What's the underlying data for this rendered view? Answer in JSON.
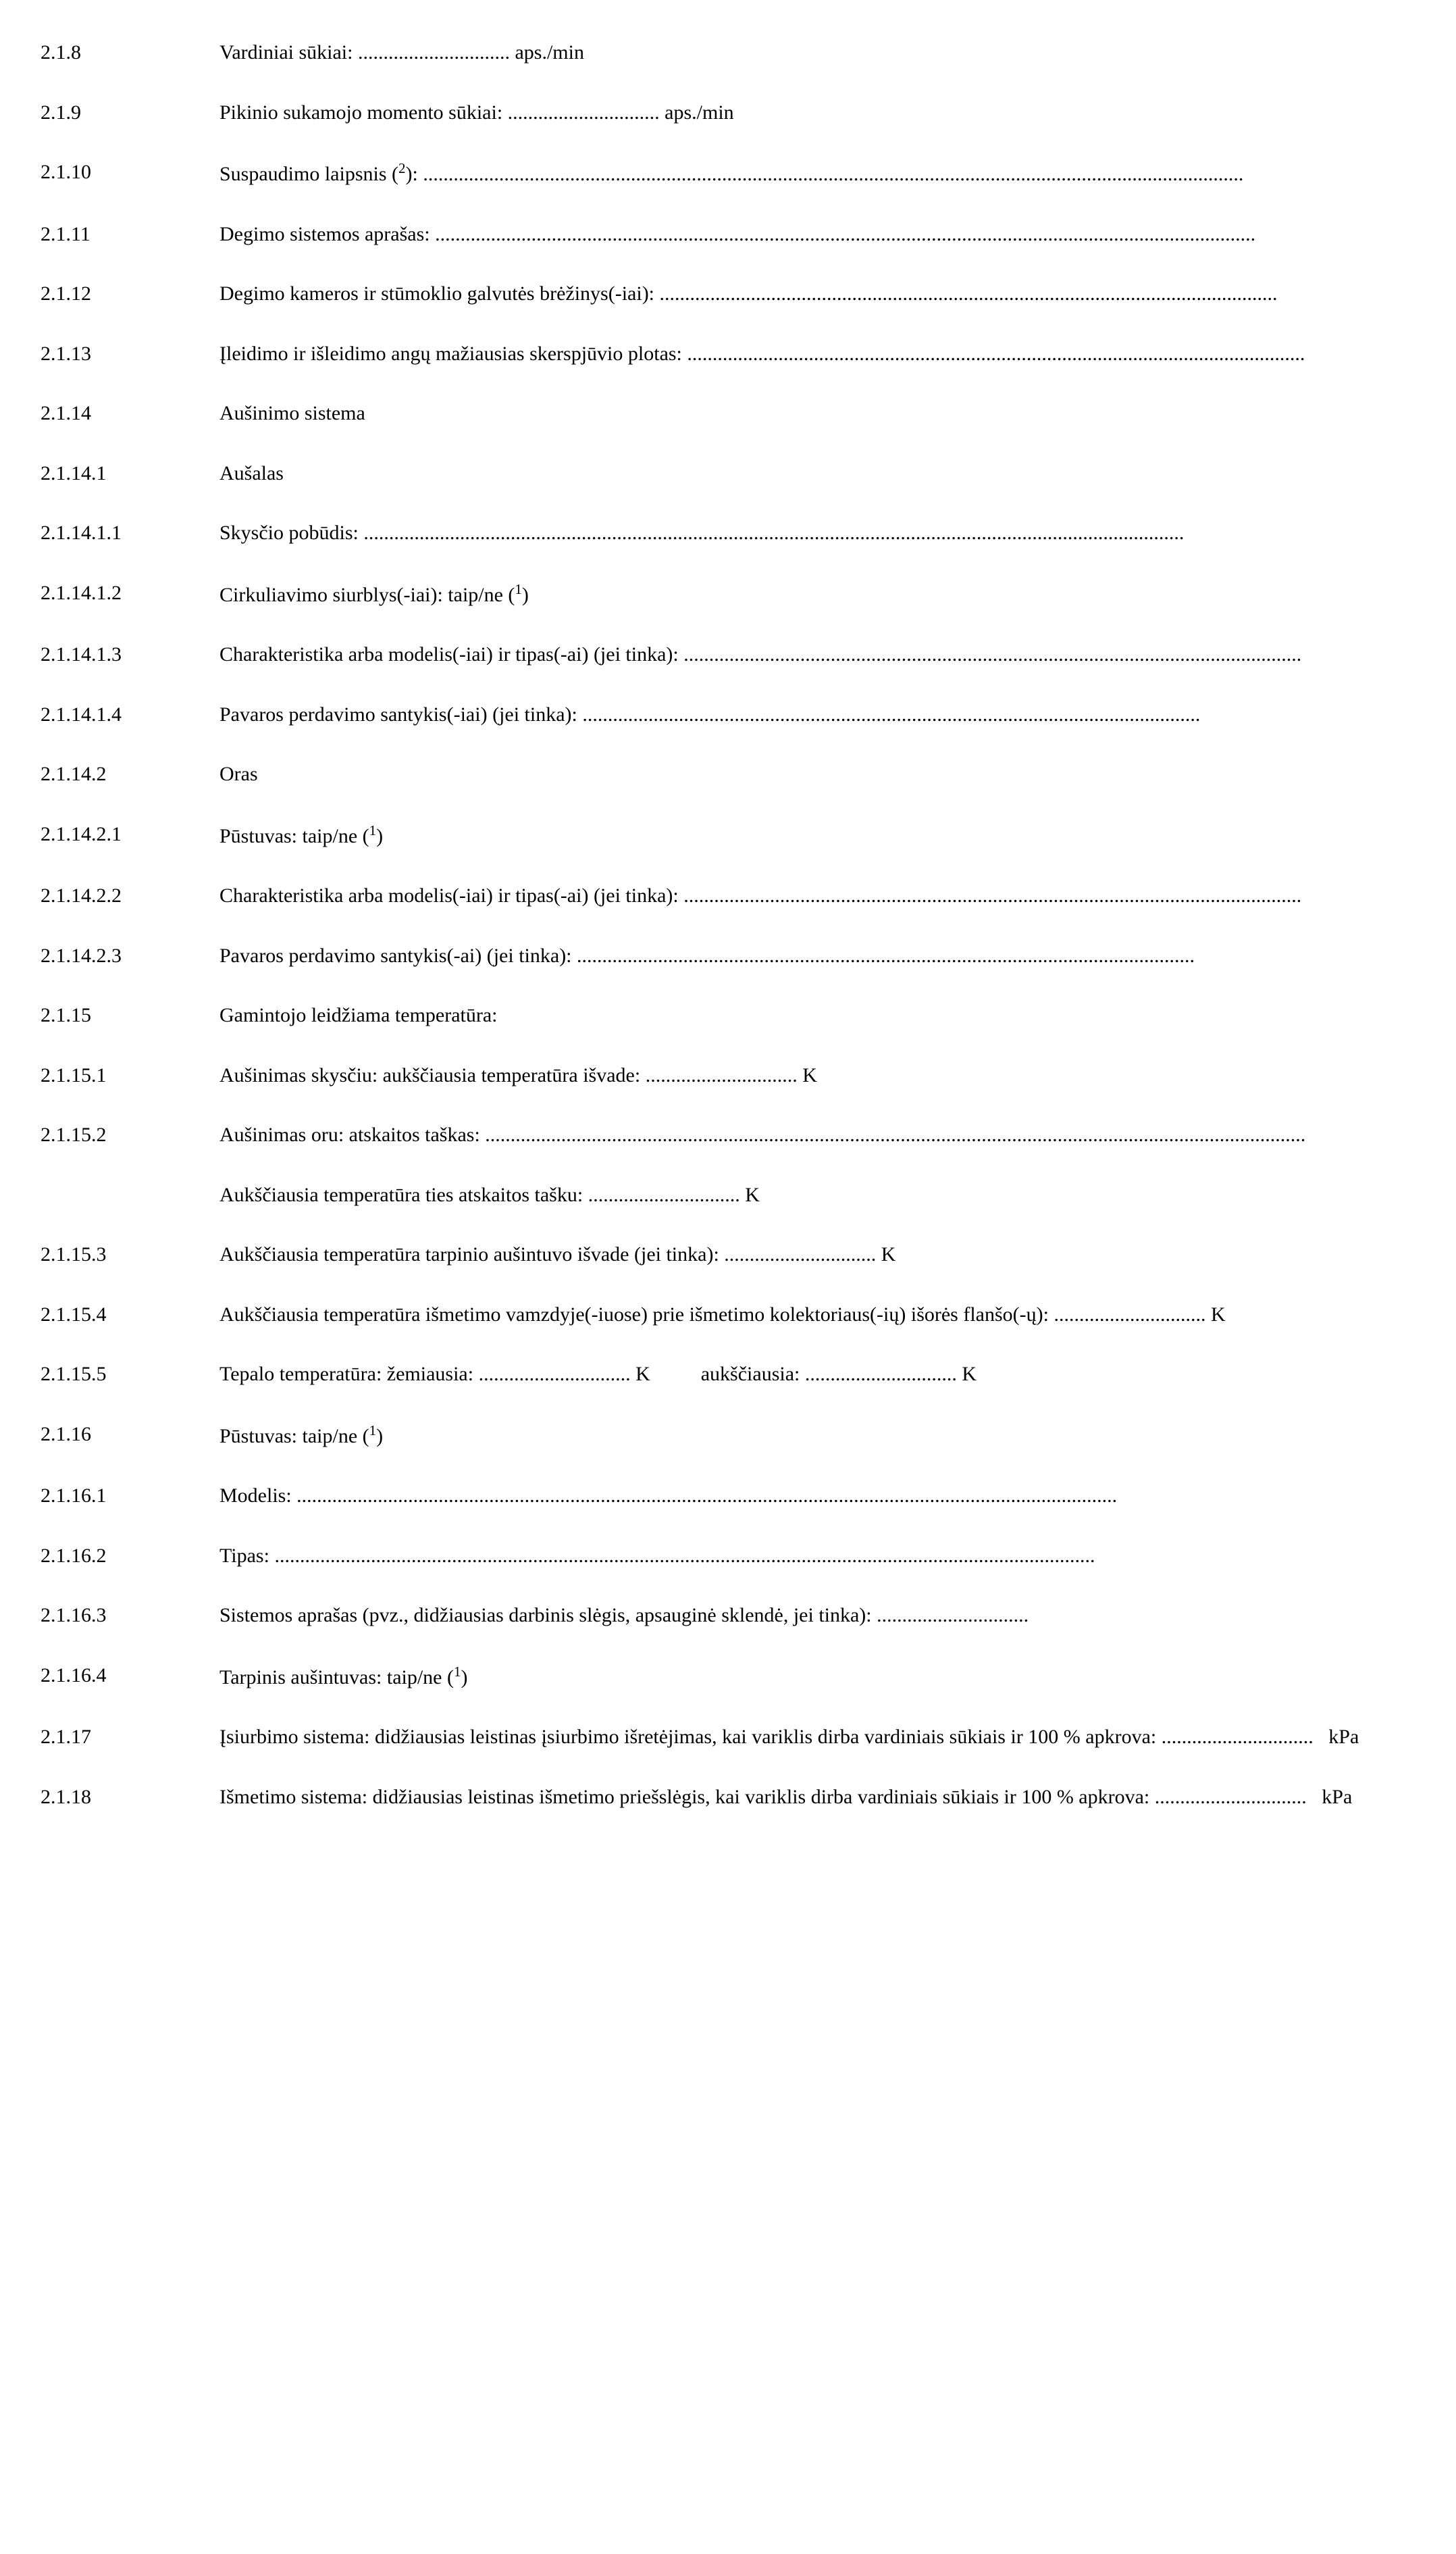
{
  "strings": {
    "dots_s": "..............................",
    "dots_m": "..................................................................",
    "dots_l": "..........................................................................................................................",
    "dots_xl": "..................................................................................................................................................................",
    "unit_rpm": "aps./min",
    "unit_K": "K",
    "unit_kpa": "kPa",
    "footref": "1",
    "footsq": "2"
  },
  "rows": {
    "r1": {
      "num": "2.1.8",
      "a": "Vardiniai sūkiai: "
    },
    "r2": {
      "num": "2.1.9",
      "a": "Pikinio sukamojo momento sūkiai: "
    },
    "r3": {
      "num": "2.1.10",
      "a": "Suspaudimo laipsnis (",
      "b": "): "
    },
    "r4": {
      "num": "2.1.11",
      "a": "Degimo sistemos aprašas: "
    },
    "r5": {
      "num": "2.1.12",
      "a": "Degimo kameros ir stūmoklio galvutės brėžinys(-iai): "
    },
    "r6": {
      "num": "2.1.13",
      "a": "Įleidimo ir išleidimo angų mažiausias skerspjūvio plotas: "
    },
    "r7": {
      "num": "2.1.14",
      "a": "Aušinimo sistema"
    },
    "r8": {
      "num": "2.1.14.1",
      "a": "Aušalas"
    },
    "r9": {
      "num": "2.1.14.1.1",
      "a": "Skysčio pobūdis: "
    },
    "r10": {
      "num": "2.1.14.1.2",
      "a": "Cirkuliavimo siurblys(-iai): taip/ne (",
      "b": ")"
    },
    "r11": {
      "num": "2.1.14.1.3",
      "a": "Charakteristika arba modelis(-iai) ir tipas(-ai) (jei tinka): "
    },
    "r12": {
      "num": "2.1.14.1.4",
      "a": "Pavaros perdavimo santykis(-iai) (jei tinka): "
    },
    "r13": {
      "num": "2.1.14.2",
      "a": "Oras"
    },
    "r14": {
      "num": "2.1.14.2.1",
      "a": "Pūstuvas: taip/ne (",
      "b": ")"
    },
    "r15": {
      "num": "2.1.14.2.2",
      "a": "Charakteristika arba modelis(-iai) ir tipas(-ai) (jei tinka): "
    },
    "r16": {
      "num": "2.1.14.2.3",
      "a": "Pavaros perdavimo santykis(-ai) (jei tinka): "
    },
    "r17": {
      "num": "2.1.15",
      "a": "Gamintojo leidžiama temperatūra:"
    },
    "r18": {
      "num": "2.1.15.1",
      "a": "Aušinimas skysčiu: aukščiausia temperatūra išvade: "
    },
    "r19": {
      "num": "2.1.15.2",
      "a": "Aušinimas oru: atskaitos taškas: "
    },
    "r20": {
      "num": "",
      "a": "Aukščiausia temperatūra ties atskaitos tašku: "
    },
    "r21": {
      "num": "2.1.15.3",
      "a": "Aukščiausia temperatūra tarpinio aušintuvo išvade (jei tinka): "
    },
    "r22": {
      "num": "2.1.15.4",
      "a": "Aukščiausia temperatūra išmetimo vamzdyje(-iuose) prie išmetimo kolektoriaus(-ių) išorės flanšo(-ų): "
    },
    "r23": {
      "num": "2.1.15.5",
      "a": "Tepalo temperatūra: žemiausia: ",
      "b": "aukščiausia: "
    },
    "r24": {
      "num": "2.1.16",
      "a": "Pūstuvas: taip/ne (",
      "b": ")"
    },
    "r25": {
      "num": "2.1.16.1",
      "a": "Modelis: "
    },
    "r26": {
      "num": "2.1.16.2",
      "a": "Tipas: "
    },
    "r27": {
      "num": "2.1.16.3",
      "a": "Sistemos aprašas (pvz., didžiausias darbinis slėgis, apsauginė sklendė, jei tinka): "
    },
    "r28": {
      "num": "2.1.16.4",
      "a": "Tarpinis aušintuvas: taip/ne (",
      "b": ")"
    },
    "r29": {
      "num": "2.1.17",
      "a": "Įsiurbimo sistema: didžiausias leistinas įsiurbimo išretėjimas, kai variklis dirba vardiniais sūkiais ir 100 % apkrova: "
    },
    "r30": {
      "num": "2.1.18",
      "a": "Išmetimo sistema: didžiausias leistinas išmetimo priešslėgis, kai variklis dirba vardiniais sūkiais ir 100 % apkrova: "
    }
  }
}
